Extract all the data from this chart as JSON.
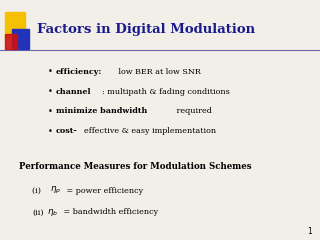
{
  "title": "Factors in Digital Modulation",
  "title_fontsize": 9.5,
  "title_color": "#1a1a8c",
  "bg_color": "#f2efe9",
  "line_color": "#6666aa",
  "bullet_items": [
    {
      "bold": "efficiency:",
      "normal": " low BER at low SNR"
    },
    {
      "bold": "channel",
      "normal": ": multipath & fading conditions"
    },
    {
      "bold": "minimize bandwidth",
      "normal": " required"
    },
    {
      "bold": "cost-",
      "normal": "effective & easy implementation"
    }
  ],
  "section_title": "Performance Measures for Modulation Schemes",
  "items": [
    {
      "prefix": "(i)  ",
      "math": "\\eta_p",
      "suffix": " = power efficiency"
    },
    {
      "prefix": "(ii)",
      "math": "\\eta_b",
      "suffix": " = bandwidth efficiency"
    }
  ],
  "page_number": "1",
  "bullet_fontsize": 5.8,
  "section_fontsize": 6.2,
  "item_fontsize": 5.8,
  "square_yellow": "#f5c000",
  "square_blue": "#2233bb",
  "square_red": "#cc1111"
}
